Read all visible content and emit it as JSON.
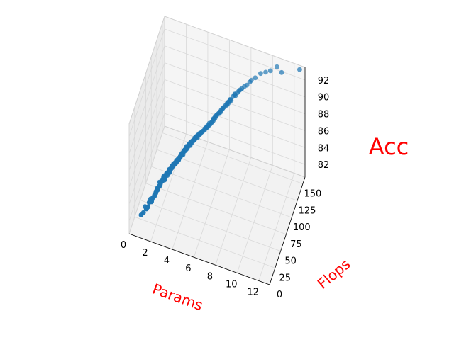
{
  "chart_data": {
    "type": "scatter3d",
    "title": "",
    "xlabel": "Params",
    "ylabel": "Flops",
    "zlabel": "Acc",
    "label_color": "#ff0000",
    "marker_color": "#1f77b4",
    "grid": true,
    "xlim": [
      0,
      13
    ],
    "ylim": [
      0,
      160
    ],
    "zlim": [
      80.5,
      93.5
    ],
    "x_ticks": [
      "0",
      "2",
      "4",
      "6",
      "8",
      "10",
      "12"
    ],
    "y_ticks": [
      "0",
      "25",
      "50",
      "75",
      "100",
      "125",
      "150"
    ],
    "z_ticks": [
      "82",
      "84",
      "86",
      "88",
      "90",
      "92"
    ],
    "points": [
      [
        1.2,
        20,
        82.4
      ],
      [
        0.8,
        15,
        81.9
      ],
      [
        1.5,
        25,
        83.1
      ],
      [
        2.0,
        30,
        84.2
      ],
      [
        1.8,
        28,
        83.6
      ],
      [
        2.4,
        40,
        85.3
      ],
      [
        2.1,
        35,
        84.8
      ],
      [
        2.7,
        42,
        85.6
      ],
      [
        3.0,
        48,
        86.1
      ],
      [
        2.5,
        38,
        85.0
      ],
      [
        1.6,
        22,
        83.3
      ],
      [
        2.2,
        33,
        84.6
      ],
      [
        3.3,
        50,
        86.4
      ],
      [
        2.9,
        45,
        85.8
      ],
      [
        3.6,
        55,
        86.9
      ],
      [
        1.1,
        18,
        82.8
      ],
      [
        1.9,
        27,
        84.0
      ],
      [
        2.6,
        41,
        85.4
      ],
      [
        3.1,
        47,
        86.2
      ],
      [
        3.8,
        58,
        87.0
      ],
      [
        4.0,
        62,
        87.4
      ],
      [
        3.5,
        52,
        86.7
      ],
      [
        2.3,
        36,
        84.9
      ],
      [
        1.4,
        24,
        83.0
      ],
      [
        2.8,
        44,
        85.9
      ],
      [
        3.9,
        60,
        87.3
      ],
      [
        4.3,
        66,
        87.7
      ],
      [
        3.2,
        49,
        86.3
      ],
      [
        2.0,
        31,
        84.4
      ],
      [
        1.7,
        26,
        83.5
      ],
      [
        4.5,
        70,
        88.0
      ],
      [
        4.1,
        64,
        87.6
      ],
      [
        3.7,
        57,
        87.1
      ],
      [
        2.4,
        39,
        85.2
      ],
      [
        3.4,
        51,
        86.6
      ],
      [
        4.8,
        74,
        88.2
      ],
      [
        4.2,
        65,
        87.8
      ],
      [
        5.0,
        78,
        88.5
      ],
      [
        3.0,
        46,
        86.0
      ],
      [
        2.2,
        34,
        84.7
      ],
      [
        1.3,
        21,
        82.6
      ],
      [
        2.9,
        43,
        85.7
      ],
      [
        3.6,
        56,
        86.8
      ],
      [
        4.4,
        68,
        87.9
      ],
      [
        5.2,
        80,
        88.7
      ],
      [
        4.6,
        72,
        88.1
      ],
      [
        3.8,
        59,
        87.2
      ],
      [
        2.6,
        40,
        85.5
      ],
      [
        1.9,
        29,
        84.1
      ],
      [
        3.3,
        53,
        86.5
      ],
      [
        5.5,
        85,
        88.9
      ],
      [
        4.9,
        76,
        88.4
      ],
      [
        4.0,
        63,
        87.5
      ],
      [
        5.8,
        90,
        89.2
      ],
      [
        3.1,
        48,
        86.2
      ],
      [
        2.1,
        32,
        84.5
      ],
      [
        1.6,
        23,
        83.2
      ],
      [
        2.7,
        43,
        85.6
      ],
      [
        3.5,
        54,
        86.8
      ],
      [
        4.3,
        67,
        87.8
      ],
      [
        6.0,
        95,
        89.4
      ],
      [
        5.3,
        83,
        88.8
      ],
      [
        4.7,
        73,
        88.3
      ],
      [
        3.9,
        61,
        87.4
      ],
      [
        2.8,
        45,
        85.8
      ],
      [
        6.3,
        100,
        89.7
      ],
      [
        5.7,
        88,
        89.1
      ],
      [
        4.2,
        66,
        87.7
      ],
      [
        3.4,
        52,
        86.6
      ],
      [
        2.3,
        37,
        85.0
      ],
      [
        1.5,
        24,
        83.4
      ],
      [
        2.5,
        39,
        85.3
      ],
      [
        3.2,
        50,
        86.4
      ],
      [
        4.0,
        64,
        87.6
      ],
      [
        5.1,
        79,
        88.6
      ],
      [
        6.5,
        105,
        90.0
      ],
      [
        5.9,
        92,
        89.3
      ],
      [
        4.5,
        71,
        88.0
      ],
      [
        3.7,
        58,
        87.1
      ],
      [
        2.9,
        46,
        85.9
      ],
      [
        6.8,
        110,
        90.3
      ],
      [
        6.1,
        97,
        89.6
      ],
      [
        5.4,
        84,
        88.9
      ],
      [
        4.8,
        75,
        88.3
      ],
      [
        4.1,
        65,
        87.6
      ],
      [
        3.6,
        55,
        86.9
      ],
      [
        2.4,
        38,
        85.1
      ],
      [
        1.8,
        27,
        83.8
      ],
      [
        3.0,
        47,
        86.1
      ],
      [
        3.8,
        60,
        87.2
      ],
      [
        7.0,
        115,
        90.5
      ],
      [
        6.4,
        102,
        89.8
      ],
      [
        5.6,
        87,
        89.0
      ],
      [
        4.6,
        73,
        88.2
      ],
      [
        3.3,
        51,
        86.5
      ],
      [
        2.2,
        35,
        84.8
      ],
      [
        1.2,
        19,
        82.5
      ],
      [
        2.6,
        42,
        85.5
      ],
      [
        3.5,
        53,
        86.7
      ],
      [
        4.4,
        69,
        88.0
      ],
      [
        7.3,
        120,
        90.8
      ],
      [
        6.7,
        108,
        90.2
      ],
      [
        5.9,
        93,
        89.4
      ],
      [
        5.0,
        77,
        88.5
      ],
      [
        4.2,
        67,
        87.8
      ],
      [
        3.1,
        49,
        86.3
      ],
      [
        2.0,
        30,
        84.3
      ],
      [
        1.4,
        22,
        83.1
      ],
      [
        2.8,
        44,
        85.7
      ],
      [
        3.9,
        62,
        87.3
      ],
      [
        7.6,
        125,
        91.0
      ],
      [
        6.9,
        112,
        90.4
      ],
      [
        6.2,
        99,
        89.7
      ],
      [
        5.3,
        82,
        88.7
      ],
      [
        4.5,
        70,
        88.1
      ],
      [
        3.4,
        54,
        86.6
      ],
      [
        2.5,
        40,
        85.2
      ],
      [
        1.7,
        25,
        83.6
      ],
      [
        3.0,
        48,
        86.0
      ],
      [
        4.1,
        63,
        87.5
      ],
      [
        8.0,
        130,
        91.3
      ],
      [
        7.2,
        118,
        90.7
      ],
      [
        6.5,
        104,
        90.0
      ],
      [
        5.6,
        89,
        89.1
      ],
      [
        4.7,
        74,
        88.3
      ],
      [
        3.7,
        57,
        87.0
      ],
      [
        2.7,
        41,
        85.4
      ],
      [
        1.9,
        28,
        84.0
      ],
      [
        3.2,
        50,
        86.3
      ],
      [
        4.3,
        68,
        87.9
      ],
      [
        8.4,
        135,
        91.6
      ],
      [
        7.5,
        123,
        90.9
      ],
      [
        6.8,
        109,
        90.2
      ],
      [
        5.9,
        94,
        89.4
      ],
      [
        4.9,
        77,
        88.5
      ],
      [
        3.8,
        59,
        87.2
      ],
      [
        2.9,
        45,
        85.8
      ],
      [
        2.1,
        33,
        84.5
      ],
      [
        3.4,
        52,
        86.5
      ],
      [
        4.6,
        71,
        88.1
      ],
      [
        8.8,
        140,
        91.9
      ],
      [
        7.8,
        128,
        91.1
      ],
      [
        7.1,
        114,
        90.5
      ],
      [
        6.1,
        98,
        89.6
      ],
      [
        5.1,
        80,
        88.6
      ],
      [
        4.0,
        62,
        87.4
      ],
      [
        3.1,
        48,
        86.2
      ],
      [
        2.3,
        36,
        84.9
      ],
      [
        3.6,
        56,
        86.9
      ],
      [
        4.8,
        75,
        88.4
      ],
      [
        9.2,
        145,
        92.2
      ],
      [
        8.2,
        132,
        91.4
      ],
      [
        7.4,
        119,
        90.8
      ],
      [
        6.4,
        103,
        89.9
      ],
      [
        5.4,
        85,
        88.8
      ],
      [
        4.2,
        65,
        87.7
      ],
      [
        3.3,
        51,
        86.4
      ],
      [
        2.4,
        39,
        85.1
      ],
      [
        3.7,
        58,
        87.1
      ],
      [
        5.0,
        78,
        88.5
      ],
      [
        6.0,
        96,
        89.5
      ],
      [
        6.6,
        106,
        90.1
      ],
      [
        7.0,
        113,
        90.5
      ],
      [
        7.7,
        126,
        91.1
      ],
      [
        8.5,
        137,
        91.7
      ],
      [
        5.5,
        86,
        89.0
      ],
      [
        5.8,
        91,
        89.2
      ],
      [
        6.3,
        101,
        89.8
      ],
      [
        6.9,
        111,
        90.3
      ],
      [
        7.3,
        121,
        90.8
      ],
      [
        1.0,
        16,
        82.2
      ],
      [
        1.3,
        20,
        82.7
      ],
      [
        1.6,
        24,
        83.3
      ],
      [
        2.0,
        30,
        84.2
      ],
      [
        2.5,
        38,
        85.1
      ],
      [
        2.8,
        43,
        85.6
      ],
      [
        3.2,
        49,
        86.3
      ],
      [
        3.5,
        54,
        86.7
      ],
      [
        3.9,
        61,
        87.3
      ],
      [
        4.3,
        67,
        87.8
      ],
      [
        10.0,
        150,
        92.5
      ],
      [
        9.6,
        148,
        92.3
      ],
      [
        10.5,
        155,
        92.8
      ],
      [
        12.5,
        160,
        93.0
      ],
      [
        11.0,
        152,
        92.6
      ]
    ]
  }
}
